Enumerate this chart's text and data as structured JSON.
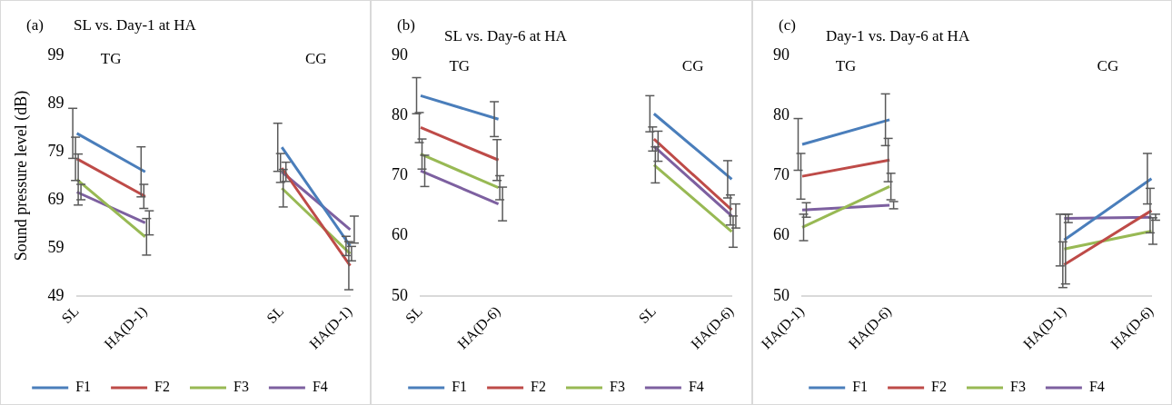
{
  "chart_data": [
    {
      "type": "line",
      "title": "SL vs. Day-1 at HA",
      "ylabel": "Sound pressure level (dB)",
      "annotations": [
        "(a)",
        "TG",
        "CG"
      ],
      "categories": [
        "SL",
        "HA(D-1)",
        null,
        "SL",
        "HA(D-1)"
      ],
      "ylim": [
        49,
        99
      ],
      "yticks": [
        49,
        59,
        69,
        79,
        89,
        99
      ],
      "legend": "bottom",
      "grid": false,
      "series": [
        {
          "name": "F1",
          "color": "#4a7ebb",
          "values": [
            82.8,
            74.8,
            null,
            79.9,
            59.4
          ],
          "errors": [
            5.2,
            5.2,
            null,
            5,
            2
          ]
        },
        {
          "name": "F2",
          "color": "#be4b48",
          "values": [
            77.5,
            69.7,
            null,
            75.6,
            55.3
          ],
          "errors": [
            4.5,
            2.5,
            null,
            3,
            5
          ]
        },
        {
          "name": "F3",
          "color": "#98b954",
          "values": [
            73.2,
            61.3,
            null,
            71.4,
            57.8
          ],
          "errors": [
            5.3,
            3.8,
            null,
            3.9,
            1.5
          ]
        },
        {
          "name": "F4",
          "color": "#7d60a0",
          "values": [
            70.6,
            64.2,
            null,
            74.8,
            62.8
          ],
          "errors": [
            1.6,
            2.5,
            null,
            2,
            2.8
          ]
        }
      ]
    },
    {
      "type": "line",
      "title": "SL vs. Day-6 at HA",
      "annotations": [
        "(b)",
        "TG",
        "CG"
      ],
      "categories": [
        "SL",
        "HA(D-6)",
        null,
        "SL",
        "HA(D-6)"
      ],
      "ylim": [
        50,
        90
      ],
      "yticks": [
        50,
        60,
        70,
        80,
        90
      ],
      "legend": "bottom",
      "grid": false,
      "series": [
        {
          "name": "F1",
          "color": "#4a7ebb",
          "values": [
            83.3,
            79.4,
            null,
            80.3,
            69.4
          ],
          "errors": [
            3,
            2.9,
            null,
            3,
            3.1
          ]
        },
        {
          "name": "F2",
          "color": "#be4b48",
          "values": [
            78,
            72.6,
            null,
            76.1,
            64.3
          ],
          "errors": [
            2.5,
            3.4,
            null,
            2,
            2.5
          ]
        },
        {
          "name": "F3",
          "color": "#98b954",
          "values": [
            73.6,
            68,
            null,
            71.8,
            60.7
          ],
          "errors": [
            2.5,
            2,
            null,
            3,
            2.6
          ]
        },
        {
          "name": "F4",
          "color": "#7d60a0",
          "values": [
            70.8,
            65.3,
            null,
            74.9,
            63.3
          ],
          "errors": [
            2.6,
            2.8,
            null,
            2.5,
            2
          ]
        }
      ]
    },
    {
      "type": "line",
      "title": "Day-1 vs. Day-6 at HA",
      "annotations": [
        "(c)",
        "TG",
        "CG"
      ],
      "categories": [
        "HA(D-1)",
        "HA(D-6)",
        null,
        "HA(D-1)",
        "HA(D-6)"
      ],
      "ylim": [
        50,
        90
      ],
      "yticks": [
        50,
        60,
        70,
        80,
        90
      ],
      "legend": "bottom",
      "grid": false,
      "series": [
        {
          "name": "F1",
          "color": "#4a7ebb",
          "values": [
            75.2,
            79.3,
            null,
            59.3,
            69.5
          ],
          "errors": [
            4.3,
            4.3,
            null,
            4.3,
            4.2
          ]
        },
        {
          "name": "F2",
          "color": "#be4b48",
          "values": [
            69.9,
            72.6,
            null,
            55.2,
            64.2
          ],
          "errors": [
            3.8,
            3.6,
            null,
            3.8,
            3.7
          ]
        },
        {
          "name": "F3",
          "color": "#98b954",
          "values": [
            61.4,
            68.2,
            null,
            57.8,
            60.8
          ],
          "errors": [
            2.2,
            2.2,
            null,
            5.8,
            2.2
          ]
        },
        {
          "name": "F4",
          "color": "#7d60a0",
          "values": [
            64.3,
            65.1,
            null,
            62.9,
            63.1
          ],
          "errors": [
            1.2,
            0.6,
            null,
            0.7,
            0.5
          ]
        }
      ]
    }
  ]
}
